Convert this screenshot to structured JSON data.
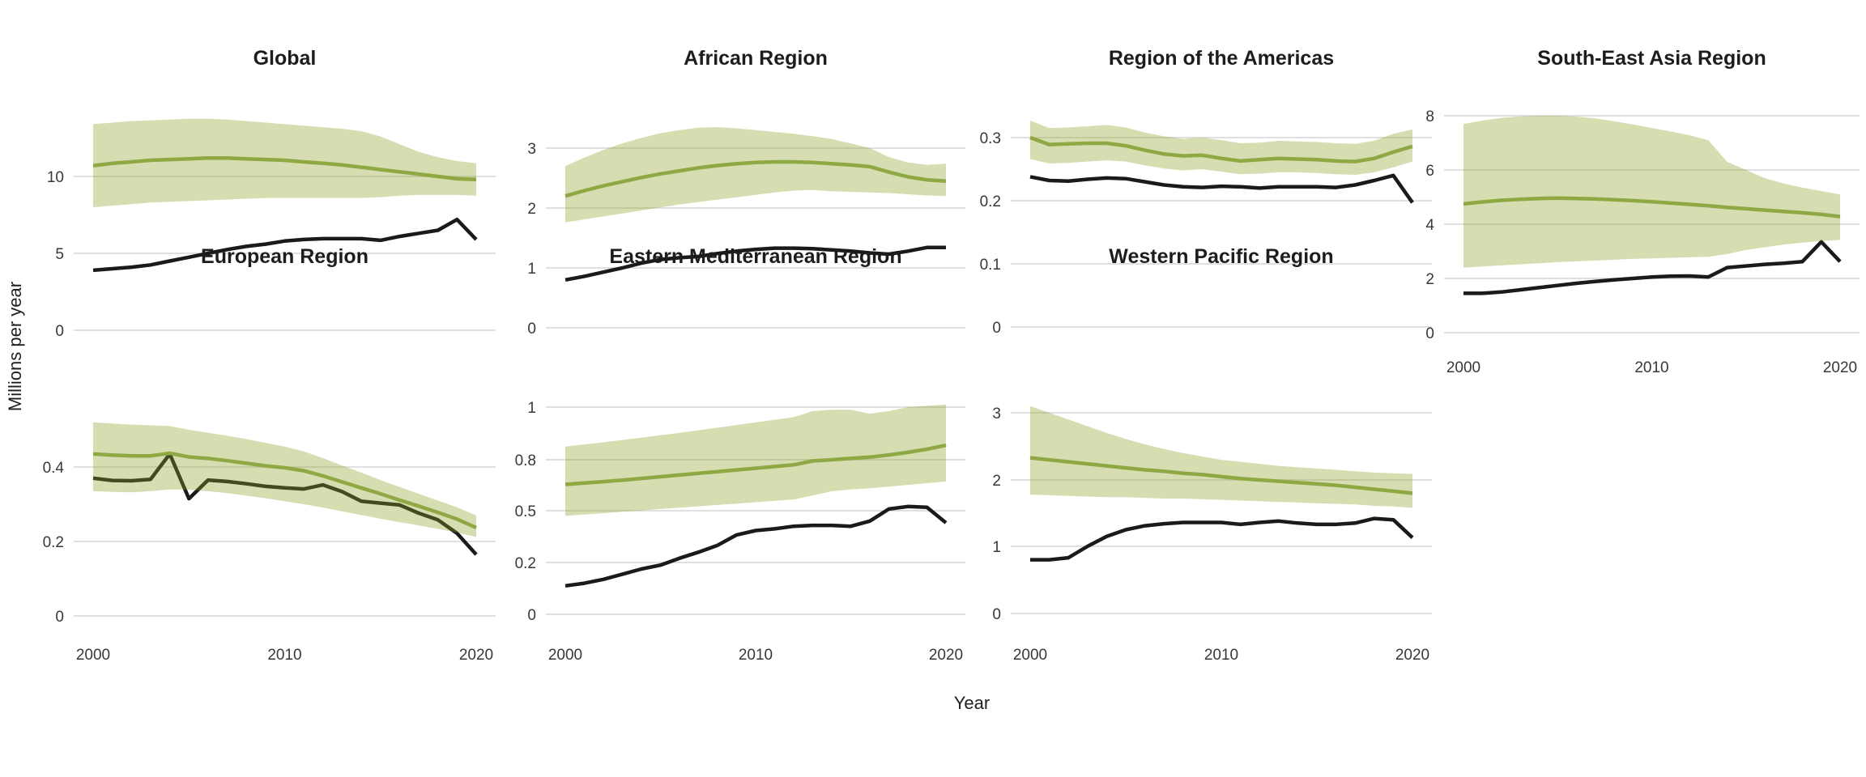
{
  "figure": {
    "y_axis_label": "Millions per year",
    "x_axis_label": "Year",
    "colors": {
      "estimate_line": "#8fa843",
      "uncertainty_band_fill": "rgba(140,160,40,0.36)",
      "uncertainty_band_apparent": "#d3dcb0",
      "reported_line": "#1a1a1a",
      "gridline": "#d6d6d6",
      "background": "#ffffff",
      "title_text": "#1d1d1d",
      "tick_text": "#383838"
    }
  },
  "chart_data": {
    "type": "line",
    "x_label": "Year",
    "y_label": "Millions per year",
    "x": [
      2000,
      2001,
      2002,
      2003,
      2004,
      2005,
      2006,
      2007,
      2008,
      2009,
      2010,
      2011,
      2012,
      2013,
      2014,
      2015,
      2016,
      2017,
      2018,
      2019,
      2020
    ],
    "x_tick_labels": [
      "2000",
      "2010",
      "2020"
    ],
    "x_tick_years": [
      2000,
      2010,
      2020
    ],
    "grid": "major-horizontal-only",
    "legend": "none",
    "panels": [
      {
        "title": "Global",
        "y_ticks": [
          0,
          5,
          10
        ],
        "ylim": [
          0,
          14
        ],
        "series": [
          {
            "name": "estimate",
            "values": [
              10.7,
              10.85,
              10.95,
              11.05,
              11.1,
              11.15,
              11.2,
              11.2,
              11.15,
              11.1,
              11.05,
              10.95,
              10.85,
              10.75,
              10.6,
              10.45,
              10.3,
              10.15,
              10.0,
              9.85,
              9.8
            ]
          },
          {
            "name": "estimate_upper",
            "values": [
              13.4,
              13.5,
              13.6,
              13.65,
              13.7,
              13.75,
              13.75,
              13.7,
              13.6,
              13.5,
              13.4,
              13.3,
              13.2,
              13.1,
              12.95,
              12.6,
              12.1,
              11.6,
              11.25,
              11.0,
              10.85
            ]
          },
          {
            "name": "estimate_lower",
            "values": [
              8.0,
              8.1,
              8.2,
              8.3,
              8.35,
              8.4,
              8.45,
              8.5,
              8.55,
              8.6,
              8.6,
              8.6,
              8.6,
              8.6,
              8.6,
              8.65,
              8.75,
              8.8,
              8.8,
              8.8,
              8.75
            ]
          },
          {
            "name": "reported",
            "values": [
              3.9,
              4.0,
              4.1,
              4.25,
              4.5,
              4.75,
              5.0,
              5.25,
              5.45,
              5.6,
              5.8,
              5.9,
              5.95,
              5.95,
              5.95,
              5.85,
              6.1,
              6.3,
              6.5,
              7.2,
              5.9
            ]
          }
        ]
      },
      {
        "title": "African Region",
        "y_ticks": [
          0,
          1,
          2,
          3
        ],
        "ylim": [
          0,
          3.5
        ],
        "series": [
          {
            "name": "estimate",
            "values": [
              2.2,
              2.29,
              2.37,
              2.44,
              2.51,
              2.57,
              2.62,
              2.67,
              2.71,
              2.74,
              2.76,
              2.77,
              2.77,
              2.76,
              2.74,
              2.72,
              2.69,
              2.6,
              2.52,
              2.47,
              2.45
            ]
          },
          {
            "name": "estimate_upper",
            "values": [
              2.7,
              2.84,
              2.97,
              3.08,
              3.17,
              3.25,
              3.3,
              3.34,
              3.35,
              3.33,
              3.3,
              3.27,
              3.24,
              3.2,
              3.15,
              3.08,
              3.0,
              2.85,
              2.76,
              2.72,
              2.74
            ]
          },
          {
            "name": "estimate_lower",
            "values": [
              1.76,
              1.81,
              1.86,
              1.91,
              1.96,
              2.01,
              2.06,
              2.1,
              2.14,
              2.18,
              2.22,
              2.26,
              2.29,
              2.3,
              2.28,
              2.27,
              2.26,
              2.25,
              2.23,
              2.21,
              2.2
            ]
          },
          {
            "name": "reported",
            "values": [
              0.8,
              0.86,
              0.93,
              1.0,
              1.08,
              1.14,
              1.17,
              1.19,
              1.24,
              1.28,
              1.31,
              1.33,
              1.33,
              1.32,
              1.3,
              1.28,
              1.25,
              1.23,
              1.28,
              1.34,
              1.34
            ]
          }
        ]
      },
      {
        "title": "Region of the Americas",
        "y_ticks": [
          0,
          0.1,
          0.2,
          0.3
        ],
        "ylim": [
          0,
          0.35
        ],
        "series": [
          {
            "name": "estimate",
            "values": [
              0.3,
              0.289,
              0.29,
              0.291,
              0.291,
              0.287,
              0.28,
              0.274,
              0.271,
              0.272,
              0.267,
              0.263,
              0.265,
              0.267,
              0.266,
              0.265,
              0.263,
              0.262,
              0.267,
              0.277,
              0.286
            ]
          },
          {
            "name": "estimate_upper",
            "values": [
              0.327,
              0.315,
              0.316,
              0.318,
              0.32,
              0.316,
              0.308,
              0.302,
              0.298,
              0.3,
              0.296,
              0.291,
              0.292,
              0.295,
              0.294,
              0.293,
              0.291,
              0.29,
              0.295,
              0.306,
              0.313
            ]
          },
          {
            "name": "estimate_lower",
            "values": [
              0.266,
              0.259,
              0.26,
              0.262,
              0.264,
              0.262,
              0.256,
              0.251,
              0.248,
              0.25,
              0.246,
              0.242,
              0.243,
              0.245,
              0.245,
              0.244,
              0.242,
              0.241,
              0.245,
              0.253,
              0.262
            ]
          },
          {
            "name": "reported",
            "values": [
              0.238,
              0.232,
              0.231,
              0.234,
              0.236,
              0.235,
              0.23,
              0.225,
              0.222,
              0.221,
              0.223,
              0.222,
              0.22,
              0.222,
              0.222,
              0.222,
              0.221,
              0.225,
              0.232,
              0.24,
              0.197
            ]
          }
        ]
      },
      {
        "title": "South-East Asia Region",
        "y_ticks": [
          0,
          2,
          4,
          6,
          8
        ],
        "ylim": [
          0,
          8.3
        ],
        "series": [
          {
            "name": "estimate",
            "values": [
              4.75,
              4.82,
              4.88,
              4.92,
              4.95,
              4.96,
              4.95,
              4.93,
              4.9,
              4.87,
              4.83,
              4.78,
              4.73,
              4.68,
              4.62,
              4.57,
              4.52,
              4.47,
              4.42,
              4.36,
              4.28
            ]
          },
          {
            "name": "estimate_upper",
            "values": [
              7.7,
              7.82,
              7.92,
              7.98,
              8.0,
              8.0,
              7.97,
              7.9,
              7.8,
              7.68,
              7.55,
              7.42,
              7.28,
              7.1,
              6.3,
              6.0,
              5.7,
              5.5,
              5.35,
              5.22,
              5.1
            ]
          },
          {
            "name": "estimate_lower",
            "values": [
              2.4,
              2.44,
              2.48,
              2.52,
              2.56,
              2.6,
              2.63,
              2.66,
              2.69,
              2.72,
              2.74,
              2.76,
              2.78,
              2.8,
              2.9,
              3.05,
              3.15,
              3.25,
              3.32,
              3.38,
              3.42
            ]
          },
          {
            "name": "reported",
            "values": [
              1.45,
              1.45,
              1.5,
              1.58,
              1.66,
              1.74,
              1.82,
              1.89,
              1.95,
              2.0,
              2.05,
              2.08,
              2.09,
              2.05,
              2.4,
              2.46,
              2.52,
              2.56,
              2.62,
              3.35,
              2.62
            ]
          }
        ]
      },
      {
        "title": "European Region",
        "y_ticks": [
          0,
          0.2,
          0.4
        ],
        "ylim": [
          0,
          0.55
        ],
        "series": [
          {
            "name": "estimate",
            "values": [
              0.435,
              0.432,
              0.43,
              0.43,
              0.437,
              0.427,
              0.423,
              0.417,
              0.41,
              0.403,
              0.398,
              0.39,
              0.376,
              0.36,
              0.344,
              0.328,
              0.311,
              0.295,
              0.278,
              0.26,
              0.237
            ]
          },
          {
            "name": "estimate_upper",
            "values": [
              0.52,
              0.517,
              0.514,
              0.512,
              0.51,
              0.5,
              0.492,
              0.484,
              0.475,
              0.465,
              0.455,
              0.442,
              0.424,
              0.404,
              0.385,
              0.365,
              0.346,
              0.328,
              0.31,
              0.292,
              0.27
            ]
          },
          {
            "name": "estimate_lower",
            "values": [
              0.335,
              0.333,
              0.332,
              0.335,
              0.34,
              0.339,
              0.335,
              0.33,
              0.323,
              0.316,
              0.308,
              0.3,
              0.291,
              0.281,
              0.271,
              0.261,
              0.252,
              0.243,
              0.234,
              0.224,
              0.212
            ]
          },
          {
            "name": "reported",
            "values": [
              0.37,
              0.364,
              0.363,
              0.367,
              0.435,
              0.315,
              0.365,
              0.361,
              0.355,
              0.348,
              0.344,
              0.341,
              0.352,
              0.334,
              0.308,
              0.303,
              0.298,
              0.276,
              0.258,
              0.222,
              0.165
            ]
          }
        ]
      },
      {
        "title": "Eastern Mediterranean Region",
        "y_ticks": [
          0,
          0.2,
          0.5,
          0.8,
          1
        ],
        "ylim": [
          0,
          1.05
        ],
        "series": [
          {
            "name": "estimate",
            "values": [
              0.655,
              0.663,
              0.671,
              0.68,
              0.69,
              0.7,
              0.71,
              0.72,
              0.73,
              0.74,
              0.75,
              0.76,
              0.77,
              0.793,
              0.8,
              0.805,
              0.81,
              0.818,
              0.828,
              0.84,
              0.855
            ]
          },
          {
            "name": "estimate_upper",
            "values": [
              0.85,
              0.858,
              0.866,
              0.875,
              0.884,
              0.893,
              0.902,
              0.912,
              0.922,
              0.932,
              0.942,
              0.952,
              0.962,
              0.985,
              0.99,
              0.99,
              0.975,
              0.985,
              1.0,
              1.005,
              1.01
            ]
          },
          {
            "name": "estimate_lower",
            "values": [
              0.47,
              0.478,
              0.486,
              0.494,
              0.502,
              0.51,
              0.518,
              0.526,
              0.534,
              0.542,
              0.55,
              0.558,
              0.566,
              0.59,
              0.615,
              0.625,
              0.632,
              0.642,
              0.652,
              0.662,
              0.672
            ]
          },
          {
            "name": "reported",
            "values": [
              0.11,
              0.12,
              0.135,
              0.155,
              0.175,
              0.19,
              0.225,
              0.26,
              0.3,
              0.36,
              0.385,
              0.395,
              0.41,
              0.415,
              0.415,
              0.41,
              0.44,
              0.51,
              0.525,
              0.52,
              0.43
            ]
          }
        ]
      },
      {
        "title": "Western Pacific Region",
        "y_ticks": [
          0,
          1,
          2,
          3
        ],
        "ylim": [
          0,
          3.2
        ],
        "series": [
          {
            "name": "estimate",
            "values": [
              2.33,
              2.3,
              2.27,
              2.24,
              2.21,
              2.18,
              2.15,
              2.13,
              2.1,
              2.08,
              2.05,
              2.02,
              2.0,
              1.98,
              1.96,
              1.94,
              1.92,
              1.89,
              1.86,
              1.83,
              1.8
            ]
          },
          {
            "name": "estimate_upper",
            "values": [
              3.1,
              3.0,
              2.9,
              2.8,
              2.7,
              2.61,
              2.53,
              2.46,
              2.4,
              2.35,
              2.3,
              2.27,
              2.24,
              2.21,
              2.19,
              2.17,
              2.15,
              2.13,
              2.11,
              2.1,
              2.09
            ]
          },
          {
            "name": "estimate_lower",
            "values": [
              1.78,
              1.77,
              1.76,
              1.75,
              1.74,
              1.74,
              1.73,
              1.72,
              1.72,
              1.71,
              1.7,
              1.69,
              1.68,
              1.67,
              1.66,
              1.65,
              1.64,
              1.63,
              1.61,
              1.6,
              1.58
            ]
          },
          {
            "name": "reported",
            "values": [
              0.8,
              0.8,
              0.83,
              1.0,
              1.15,
              1.25,
              1.31,
              1.34,
              1.36,
              1.36,
              1.36,
              1.33,
              1.36,
              1.38,
              1.35,
              1.33,
              1.33,
              1.35,
              1.42,
              1.4,
              1.13
            ]
          }
        ]
      }
    ]
  }
}
